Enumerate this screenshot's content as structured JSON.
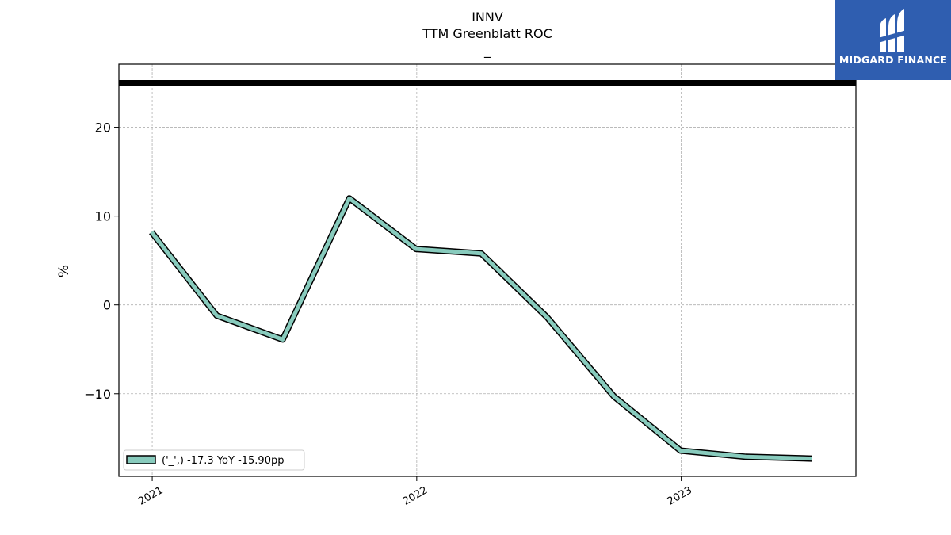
{
  "chart_data": {
    "type": "line",
    "title": "INNV",
    "subtitle": "TTM Greenblatt ROC",
    "subtitle2": "_",
    "xlabel": "",
    "ylabel": "%",
    "ylim": [
      -19.3,
      27.1
    ],
    "xlim": [
      "2020-11-16",
      "2023-08-30"
    ],
    "x_ticks": [
      "2021",
      "2022",
      "2023"
    ],
    "y_ticks": [
      -10,
      0,
      10,
      20
    ],
    "grid": true,
    "legend_position": "lower-left",
    "reference_line": {
      "y": 25.0,
      "color": "#000000"
    },
    "series": [
      {
        "name": "('_',) -17.3 YoY -15.90pp",
        "color": "#88cbbd",
        "x": [
          "2020-12-31",
          "2021-03-31",
          "2021-06-30",
          "2021-09-30",
          "2021-12-31",
          "2022-03-31",
          "2022-06-30",
          "2022-09-30",
          "2022-12-31",
          "2023-03-31",
          "2023-06-30"
        ],
        "y": [
          8.2,
          -1.2,
          -3.9,
          12.0,
          6.3,
          5.8,
          -1.4,
          -10.3,
          -16.4,
          -17.1,
          -17.3
        ]
      }
    ]
  },
  "logo": {
    "text": "MIDGARD FINANCE",
    "color": "#2f5eb0"
  }
}
